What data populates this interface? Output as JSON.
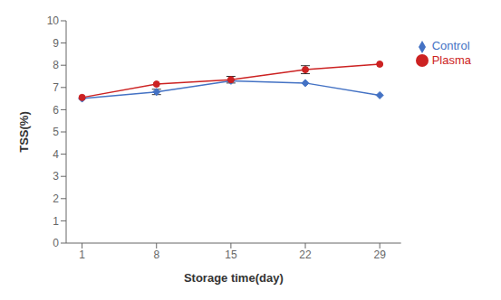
{
  "chart_data": {
    "type": "line",
    "x": [
      1,
      8,
      15,
      22,
      29
    ],
    "series": [
      {
        "name": "Control",
        "color": "#4472C4",
        "marker": "diamond",
        "line_style": "solid",
        "values": [
          6.5,
          6.8,
          7.3,
          7.2,
          6.65
        ],
        "yerr": [
          0.0,
          0.12,
          0.0,
          0.0,
          0.0
        ]
      },
      {
        "name": "Plasma",
        "color": "#CC2222",
        "marker": "circle",
        "line_style": "solid",
        "values": [
          6.55,
          7.15,
          7.35,
          7.8,
          8.05
        ],
        "yerr": [
          0.0,
          0.0,
          0.15,
          0.18,
          0.0
        ]
      }
    ],
    "xlabel": "Storage time(day)",
    "ylabel": "TSS(%)",
    "xlim": [
      -0.5,
      31
    ],
    "xticks": [
      1,
      8,
      15,
      22,
      29
    ],
    "ylim": [
      0,
      10
    ],
    "yticks": [
      0,
      1,
      2,
      3,
      4,
      5,
      6,
      7,
      8,
      9,
      10
    ],
    "grid": false,
    "legend": "right"
  }
}
